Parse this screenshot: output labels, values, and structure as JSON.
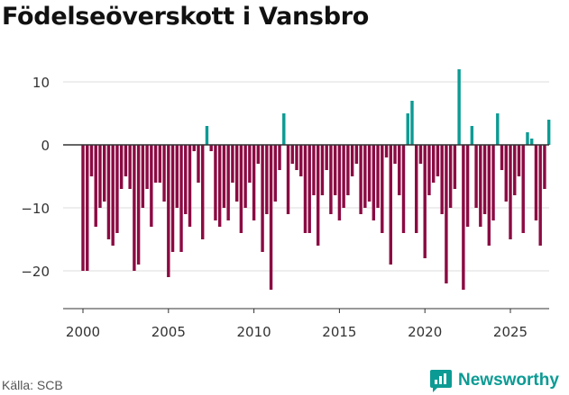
{
  "header": {
    "title": "Födelseöverskott i Vansbro"
  },
  "footer": {
    "source": "Källa: SCB",
    "brand": "Newsworthy"
  },
  "colors": {
    "positive": "#0c9b94",
    "negative": "#8b0a42",
    "grid": "#dddddd",
    "zero_line": "#333333",
    "tick_text": "#333333"
  },
  "icons": {
    "brand_logo": "newsworthy-logo-icon"
  },
  "chart_data": {
    "type": "bar",
    "title": "Födelseöverskott i Vansbro",
    "xlabel": "",
    "ylabel": "",
    "ylim": [
      -26,
      13
    ],
    "xlim": [
      1998.85,
      2026.35
    ],
    "y_ticks": [
      -20,
      -10,
      0,
      10
    ],
    "x_ticks": [
      2000,
      2005,
      2010,
      2015,
      2020,
      2025
    ],
    "start": 2000.0,
    "step": 0.25,
    "values": [
      -20,
      -20,
      -5,
      -13,
      -10,
      -9,
      -15,
      -16,
      -14,
      -7,
      -5,
      -7,
      -20,
      -19,
      -10,
      -7,
      -13,
      -6,
      -6,
      -9,
      -21,
      -17,
      -10,
      -17,
      -11,
      -13,
      -1,
      -6,
      -15,
      3,
      -1,
      -12,
      -13,
      -10,
      -12,
      -6,
      -9,
      -14,
      -10,
      -6,
      -12,
      -3,
      -17,
      -11,
      -23,
      -9,
      -4,
      5,
      -11,
      -3,
      -4,
      -5,
      -14,
      -14,
      -8,
      -16,
      -8,
      -4,
      -11,
      -8,
      -12,
      -10,
      -8,
      -5,
      -3,
      -11,
      -10,
      -9,
      -12,
      -10,
      -14,
      -2,
      -19,
      -3,
      -8,
      -14,
      5,
      7,
      -14,
      -3,
      -18,
      -8,
      -6,
      -5,
      -11,
      -22,
      -10,
      -7,
      12,
      -23,
      -13,
      3,
      -10,
      -13,
      -11,
      -16,
      -12,
      5,
      -4,
      -9,
      -15,
      -8,
      -5,
      -14,
      2,
      1,
      -12,
      -16,
      -7,
      4
    ]
  }
}
